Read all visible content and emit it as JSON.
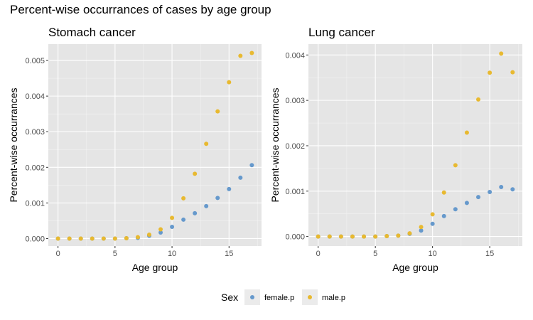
{
  "title": "Percent-wise occurrances of cases by age group",
  "colors": {
    "female": "#6699cc",
    "male": "#e8b930",
    "panel_bg": "#e5e5e5",
    "grid": "#ffffff"
  },
  "legend": {
    "title": "Sex",
    "items": [
      {
        "label": "female.p",
        "color": "#6699cc"
      },
      {
        "label": "male.p",
        "color": "#e8b930"
      }
    ]
  },
  "chart_data": [
    {
      "type": "scatter",
      "title": "Stomach cancer",
      "xlabel": "Age group",
      "ylabel": "Percent-wise occurrances",
      "xlim": [
        -0.85,
        17.85
      ],
      "ylim": [
        -0.00021,
        0.00546
      ],
      "xticks": [
        0,
        5,
        10,
        15
      ],
      "yticks": [
        0,
        0.001,
        0.002,
        0.003,
        0.004,
        0.005
      ],
      "ytick_labels": [
        "0.000",
        "0.001",
        "0.002",
        "0.003",
        "0.004",
        "0.005"
      ],
      "x": [
        0,
        1,
        2,
        3,
        4,
        5,
        6,
        7,
        8,
        9,
        10,
        11,
        12,
        13,
        14,
        15,
        16,
        17
      ],
      "series": [
        {
          "name": "female.p",
          "color": "#6699cc",
          "values": [
            0,
            0,
            0,
            0,
            0,
            0,
            1e-05,
            2e-05,
            8e-05,
            0.00017,
            0.00033,
            0.00053,
            0.00071,
            0.00091,
            0.00114,
            0.00139,
            0.00171,
            0.00206
          ]
        },
        {
          "name": "male.p",
          "color": "#e8b930",
          "values": [
            0,
            0,
            0,
            0,
            0,
            0,
            1e-05,
            4e-05,
            0.00011,
            0.00026,
            0.00058,
            0.00113,
            0.00182,
            0.00266,
            0.00357,
            0.00439,
            0.00513,
            0.00521
          ]
        }
      ]
    },
    {
      "type": "scatter",
      "title": "Lung cancer",
      "xlabel": "Age group",
      "ylabel": "Percent-wise occurrances",
      "xlim": [
        -0.85,
        17.85
      ],
      "ylim": [
        -0.00021,
        0.00424
      ],
      "xticks": [
        0,
        5,
        10,
        15
      ],
      "yticks": [
        0,
        0.001,
        0.002,
        0.003,
        0.004
      ],
      "ytick_labels": [
        "0.000",
        "0.001",
        "0.002",
        "0.003",
        "0.004"
      ],
      "x": [
        0,
        1,
        2,
        3,
        4,
        5,
        6,
        7,
        8,
        9,
        10,
        11,
        12,
        13,
        14,
        15,
        16,
        17
      ],
      "series": [
        {
          "name": "female.p",
          "color": "#6699cc",
          "values": [
            0,
            0,
            0,
            0,
            0,
            0,
            1e-05,
            2e-05,
            6e-05,
            0.00013,
            0.00028,
            0.00045,
            0.0006,
            0.00074,
            0.00087,
            0.00098,
            0.00109,
            0.00104
          ]
        },
        {
          "name": "male.p",
          "color": "#e8b930",
          "values": [
            0,
            0,
            0,
            0,
            0,
            0,
            1e-05,
            2e-05,
            7e-05,
            0.00021,
            0.00049,
            0.00097,
            0.00157,
            0.00229,
            0.00302,
            0.00361,
            0.00403,
            0.00362
          ]
        }
      ]
    }
  ]
}
